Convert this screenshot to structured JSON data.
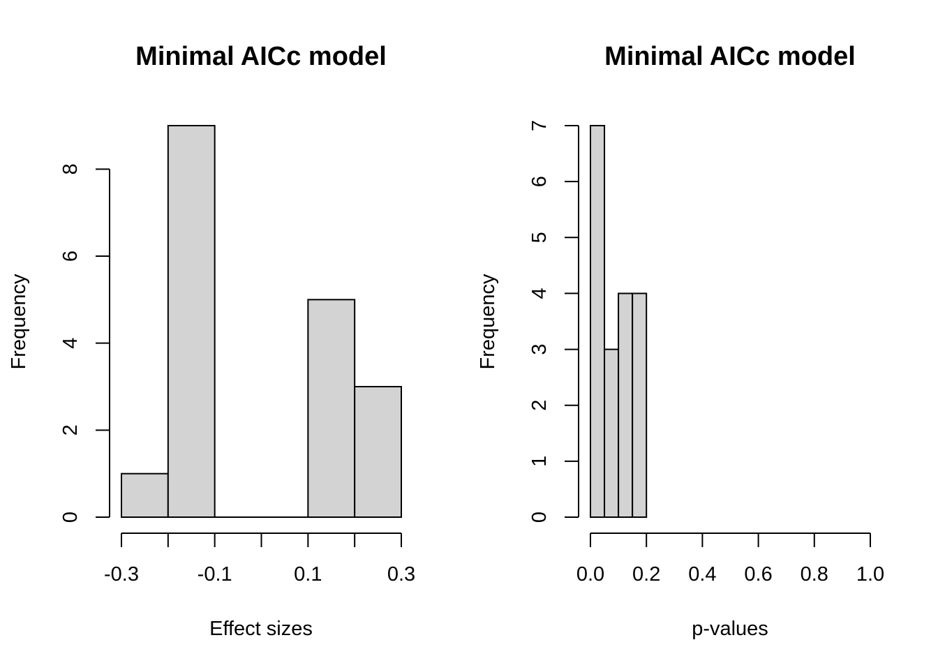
{
  "chart_data": [
    {
      "type": "bar",
      "title": "Minimal AICc model",
      "xlabel": "Effect sizes",
      "ylabel": "Frequency",
      "bins": [
        {
          "start": -0.3,
          "end": -0.2,
          "count": 1
        },
        {
          "start": -0.2,
          "end": -0.1,
          "count": 9
        },
        {
          "start": -0.1,
          "end": 0.0,
          "count": 0
        },
        {
          "start": 0.0,
          "end": 0.1,
          "count": 0
        },
        {
          "start": 0.1,
          "end": 0.2,
          "count": 5
        },
        {
          "start": 0.2,
          "end": 0.3,
          "count": 3
        }
      ],
      "xlim": [
        -0.3,
        0.3
      ],
      "ylim": [
        0,
        9
      ],
      "x_axis_ticks": [
        -0.3,
        -0.2,
        -0.1,
        0.0,
        0.1,
        0.2,
        0.3
      ],
      "x_tick_labels": [
        "-0.3",
        "",
        "-0.1",
        "",
        "0.1",
        "",
        "0.3"
      ],
      "y_ticks": [
        0,
        2,
        4,
        6,
        8
      ],
      "y_tick_labels": [
        "0",
        "2",
        "4",
        "6",
        "8"
      ],
      "bar_color": "#d3d3d3",
      "grid": false
    },
    {
      "type": "bar",
      "title": "Minimal AICc model",
      "xlabel": "p-values",
      "ylabel": "Frequency",
      "bins": [
        {
          "start": 0.0,
          "end": 0.05,
          "count": 7
        },
        {
          "start": 0.05,
          "end": 0.1,
          "count": 3
        },
        {
          "start": 0.1,
          "end": 0.15,
          "count": 4
        },
        {
          "start": 0.15,
          "end": 0.2,
          "count": 4
        }
      ],
      "xlim": [
        0,
        1
      ],
      "ylim": [
        0,
        7
      ],
      "x_axis_ticks": [
        0.0,
        0.2,
        0.4,
        0.6,
        0.8,
        1.0
      ],
      "x_tick_labels": [
        "0.0",
        "0.2",
        "0.4",
        "0.6",
        "0.8",
        "1.0"
      ],
      "y_ticks": [
        0,
        1,
        2,
        3,
        4,
        5,
        6,
        7
      ],
      "y_tick_labels": [
        "0",
        "1",
        "2",
        "3",
        "4",
        "5",
        "6",
        "7"
      ],
      "bar_color": "#d3d3d3",
      "grid": false
    }
  ]
}
